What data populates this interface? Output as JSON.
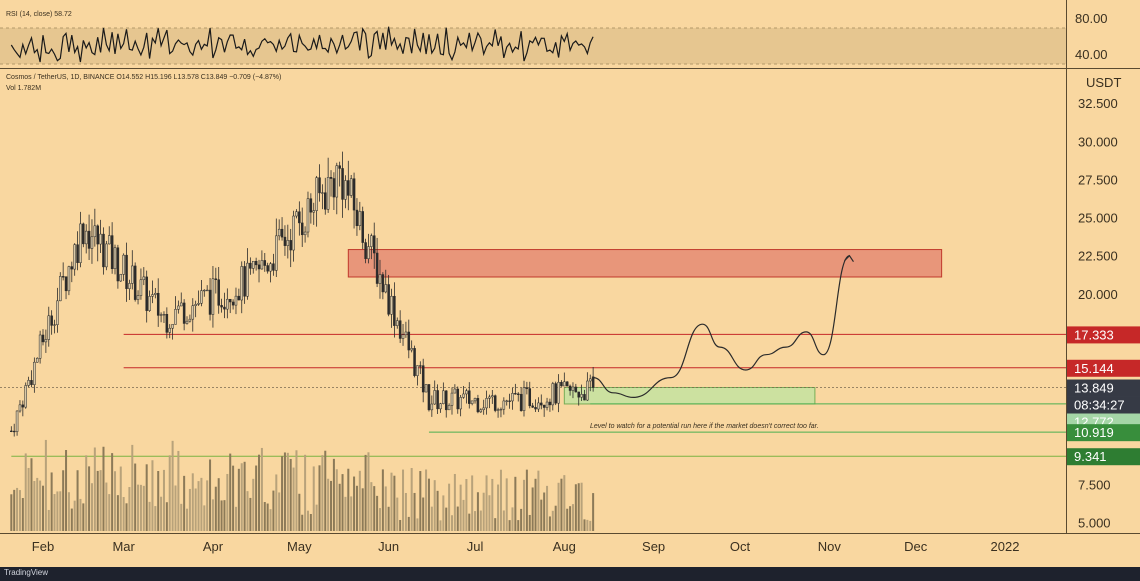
{
  "theme": {
    "background": "#f9d7a0",
    "axis_line": "#5a4a30",
    "bull": "#d9c9a8",
    "bear": "#2b2b2b",
    "volume": "#8c7a58",
    "rsi_line": "#1a1a1a",
    "rsi_band": "#e6c690"
  },
  "rsi_panel": {
    "legend": "RSI (14, close) 58.72",
    "tick_labels": [
      "80.00",
      "40.00"
    ]
  },
  "main_panel": {
    "legend_line1": "Cosmos / TetherUS, 1D, BINANCE  O14.552  H15.196  L13.578  C13.849  −0.709 (−4.87%)",
    "legend_line2": "Vol 1.782M",
    "unit_label": "USDT",
    "price_ticks": [
      "32.500",
      "30.000",
      "27.500",
      "25.000",
      "22.500",
      "20.000",
      "7.500",
      "5.000"
    ],
    "annotation": "Level to watch for a potential run here if the market doesn't correct too far.",
    "price_tags": [
      {
        "value": "17.333",
        "color": "#c62828"
      },
      {
        "value": "15.144",
        "color": "#c62828"
      },
      {
        "value": "13.849",
        "color": "#363a45"
      },
      {
        "value": "08:34:27",
        "color": "#363a45"
      },
      {
        "value": "12.772",
        "color": "#a5d6a7"
      },
      {
        "value": "10.919",
        "color": "#388e3c"
      },
      {
        "value": "9.341",
        "color": "#2e7d32"
      }
    ]
  },
  "time_axis": {
    "labels": [
      "Feb",
      "Mar",
      "Apr",
      "May",
      "Jun",
      "Jul",
      "Aug",
      "Sep",
      "Oct",
      "Nov",
      "Dec",
      "2022"
    ]
  },
  "footer": {
    "brand": "TradingView"
  },
  "chart_data": {
    "type": "candlestick",
    "symbol": "Cosmos / TetherUS",
    "timeframe": "1D",
    "exchange": "BINANCE",
    "y_axis": {
      "unit": "USDT",
      "range": [
        4.5,
        33.5
      ]
    },
    "ohlc_last": {
      "open": 14.552,
      "high": 15.196,
      "low": 13.578,
      "close": 13.849,
      "change": -0.709,
      "change_pct": -4.87
    },
    "volume_last": "1.782M",
    "rsi": {
      "period": 14,
      "value": 58.72,
      "range": [
        30,
        88
      ]
    },
    "closes_by_month": [
      {
        "month": "Feb",
        "close": 24.5
      },
      {
        "month": "Mar",
        "close": 18.5
      },
      {
        "month": "Apr",
        "close": 21.0
      },
      {
        "month": "May",
        "close": 28.0
      },
      {
        "month": "Jun",
        "close": 13.0
      },
      {
        "month": "Jul",
        "close": 13.0
      },
      {
        "month": "Aug",
        "close": 13.849
      }
    ],
    "zones": [
      {
        "name": "resistance-zone",
        "low": 21.1,
        "high": 22.9,
        "color": "#e8967a"
      },
      {
        "name": "support-zone",
        "low": 12.77,
        "high": 13.85,
        "color": "#c8e3a0"
      }
    ],
    "levels": [
      17.333,
      15.144,
      12.772,
      10.919,
      9.341
    ],
    "projection": [
      {
        "date": "Aug 11",
        "price": 14.5
      },
      {
        "date": "Aug 18",
        "price": 13.5
      },
      {
        "date": "Aug 25",
        "price": 13.2
      },
      {
        "date": "Sep 7",
        "price": 14.5
      },
      {
        "date": "Sep 18",
        "price": 18.0
      },
      {
        "date": "Sep 24",
        "price": 16.5
      },
      {
        "date": "Oct 3",
        "price": 15.0
      },
      {
        "date": "Oct 10",
        "price": 16.0
      },
      {
        "date": "Oct 17",
        "price": 16.5
      },
      {
        "date": "Oct 24",
        "price": 17.5
      },
      {
        "date": "Oct 30",
        "price": 16.0
      },
      {
        "date": "Nov 8",
        "price": 22.5
      }
    ]
  }
}
